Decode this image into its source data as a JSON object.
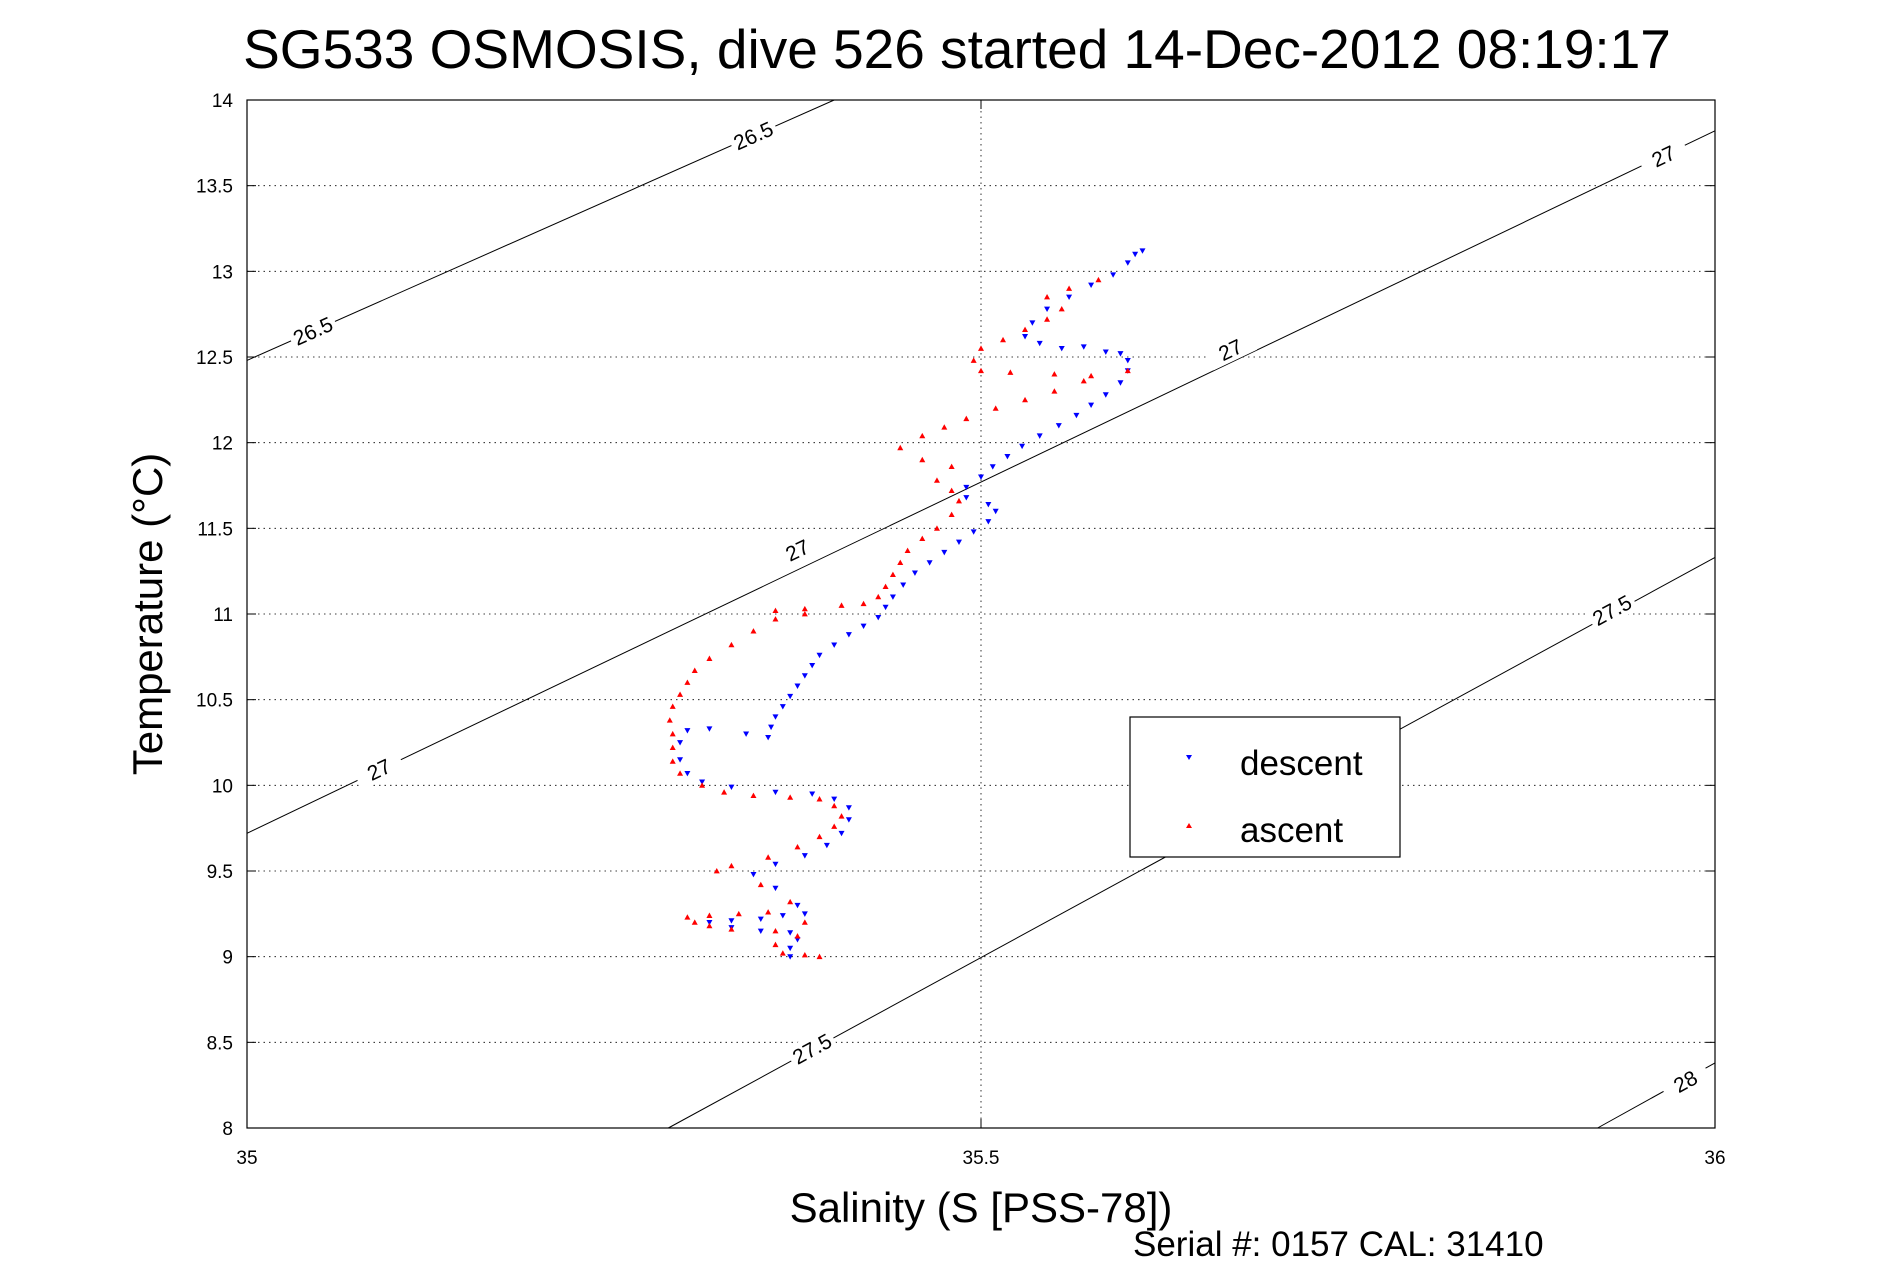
{
  "chart_data": {
    "type": "scatter",
    "title": "SG533 OSMOSIS, dive 526 started 14-Dec-2012 08:19:17",
    "xlabel": "Salinity (S [PSS-78])",
    "ylabel": "Temperature (°C)",
    "xlim": [
      35,
      36
    ],
    "ylim": [
      8,
      14
    ],
    "xticks": [
      {
        "value": 35,
        "label": "35"
      },
      {
        "value": 35.5,
        "label": "35.5"
      },
      {
        "value": 36,
        "label": "36"
      }
    ],
    "yticks": [
      {
        "value": 8,
        "label": "8"
      },
      {
        "value": 8.5,
        "label": "8.5"
      },
      {
        "value": 9,
        "label": "9"
      },
      {
        "value": 9.5,
        "label": "9.5"
      },
      {
        "value": 10,
        "label": "10"
      },
      {
        "value": 10.5,
        "label": "10.5"
      },
      {
        "value": 11,
        "label": "11"
      },
      {
        "value": 11.5,
        "label": "11.5"
      },
      {
        "value": 12,
        "label": "12"
      },
      {
        "value": 12.5,
        "label": "12.5"
      },
      {
        "value": 13,
        "label": "13"
      },
      {
        "value": 13.5,
        "label": "13.5"
      },
      {
        "value": 14,
        "label": "14"
      }
    ],
    "grid": true,
    "legend_position": "right",
    "density_contours": [
      {
        "label": "26.5",
        "points": [
          [
            35,
            12.48
          ],
          [
            35.4,
            14.0
          ]
        ],
        "labels_at": [
          [
            35.045,
            12.65
          ],
          [
            35.345,
            13.79
          ]
        ]
      },
      {
        "label": "27",
        "points": [
          [
            35,
            9.72
          ],
          [
            36,
            13.82
          ]
        ],
        "labels_at": [
          [
            35.09,
            10.09
          ],
          [
            35.375,
            11.37
          ],
          [
            35.67,
            12.54
          ],
          [
            35.965,
            13.67
          ]
        ]
      },
      {
        "label": "27.5",
        "points": [
          [
            35.287,
            8.0
          ],
          [
            36,
            11.33
          ]
        ],
        "labels_at": [
          [
            35.385,
            8.46
          ],
          [
            35.93,
            11.02
          ]
        ]
      },
      {
        "label": "28",
        "points": [
          [
            35.92,
            8.0
          ],
          [
            36,
            8.38
          ]
        ],
        "labels_at": [
          [
            35.98,
            8.27
          ]
        ]
      }
    ],
    "series": [
      {
        "name": "descent",
        "color": "#0000ff",
        "marker": "triangle-down",
        "points": [
          [
            35.61,
            13.12
          ],
          [
            35.605,
            13.1
          ],
          [
            35.6,
            13.05
          ],
          [
            35.59,
            12.98
          ],
          [
            35.575,
            12.92
          ],
          [
            35.56,
            12.85
          ],
          [
            35.545,
            12.78
          ],
          [
            35.535,
            12.7
          ],
          [
            35.53,
            12.62
          ],
          [
            35.54,
            12.58
          ],
          [
            35.555,
            12.55
          ],
          [
            35.57,
            12.56
          ],
          [
            35.585,
            12.53
          ],
          [
            35.595,
            12.52
          ],
          [
            35.6,
            12.48
          ],
          [
            35.6,
            12.42
          ],
          [
            35.595,
            12.35
          ],
          [
            35.585,
            12.28
          ],
          [
            35.575,
            12.22
          ],
          [
            35.565,
            12.16
          ],
          [
            35.553,
            12.1
          ],
          [
            35.54,
            12.04
          ],
          [
            35.528,
            11.98
          ],
          [
            35.518,
            11.92
          ],
          [
            35.508,
            11.86
          ],
          [
            35.5,
            11.8
          ],
          [
            35.49,
            11.74
          ],
          [
            35.49,
            11.68
          ],
          [
            35.505,
            11.64
          ],
          [
            35.51,
            11.6
          ],
          [
            35.505,
            11.54
          ],
          [
            35.495,
            11.48
          ],
          [
            35.485,
            11.42
          ],
          [
            35.475,
            11.36
          ],
          [
            35.465,
            11.3
          ],
          [
            35.455,
            11.24
          ],
          [
            35.447,
            11.17
          ],
          [
            35.44,
            11.1
          ],
          [
            35.435,
            11.04
          ],
          [
            35.43,
            10.98
          ],
          [
            35.42,
            10.93
          ],
          [
            35.41,
            10.88
          ],
          [
            35.4,
            10.82
          ],
          [
            35.39,
            10.76
          ],
          [
            35.385,
            10.7
          ],
          [
            35.38,
            10.64
          ],
          [
            35.375,
            10.58
          ],
          [
            35.37,
            10.52
          ],
          [
            35.365,
            10.46
          ],
          [
            35.36,
            10.4
          ],
          [
            35.357,
            10.34
          ],
          [
            35.355,
            10.28
          ],
          [
            35.34,
            10.3
          ],
          [
            35.315,
            10.33
          ],
          [
            35.3,
            10.32
          ],
          [
            35.295,
            10.25
          ],
          [
            35.295,
            10.15
          ],
          [
            35.3,
            10.07
          ],
          [
            35.31,
            10.02
          ],
          [
            35.33,
            9.99
          ],
          [
            35.36,
            9.96
          ],
          [
            35.385,
            9.95
          ],
          [
            35.4,
            9.92
          ],
          [
            35.41,
            9.87
          ],
          [
            35.41,
            9.8
          ],
          [
            35.405,
            9.72
          ],
          [
            35.395,
            9.65
          ],
          [
            35.38,
            9.59
          ],
          [
            35.36,
            9.54
          ],
          [
            35.345,
            9.48
          ],
          [
            35.36,
            9.4
          ],
          [
            35.375,
            9.3
          ],
          [
            35.38,
            9.25
          ],
          [
            35.365,
            9.24
          ],
          [
            35.35,
            9.22
          ],
          [
            35.33,
            9.21
          ],
          [
            35.315,
            9.2
          ],
          [
            35.33,
            9.17
          ],
          [
            35.35,
            9.15
          ],
          [
            35.37,
            9.14
          ],
          [
            35.375,
            9.1
          ],
          [
            35.37,
            9.05
          ],
          [
            35.37,
            9.0
          ]
        ]
      },
      {
        "name": "ascent",
        "color": "#ff0000",
        "marker": "triangle-up",
        "points": [
          [
            35.58,
            12.95
          ],
          [
            35.56,
            12.9
          ],
          [
            35.545,
            12.85
          ],
          [
            35.555,
            12.78
          ],
          [
            35.545,
            12.72
          ],
          [
            35.53,
            12.66
          ],
          [
            35.515,
            12.6
          ],
          [
            35.5,
            12.55
          ],
          [
            35.495,
            12.48
          ],
          [
            35.5,
            12.42
          ],
          [
            35.52,
            12.41
          ],
          [
            35.55,
            12.4
          ],
          [
            35.575,
            12.39
          ],
          [
            35.6,
            12.42
          ],
          [
            35.57,
            12.36
          ],
          [
            35.55,
            12.3
          ],
          [
            35.53,
            12.25
          ],
          [
            35.51,
            12.2
          ],
          [
            35.49,
            12.14
          ],
          [
            35.475,
            12.09
          ],
          [
            35.46,
            12.04
          ],
          [
            35.445,
            11.97
          ],
          [
            35.46,
            11.9
          ],
          [
            35.48,
            11.86
          ],
          [
            35.47,
            11.78
          ],
          [
            35.48,
            11.72
          ],
          [
            35.485,
            11.66
          ],
          [
            35.48,
            11.58
          ],
          [
            35.47,
            11.5
          ],
          [
            35.46,
            11.44
          ],
          [
            35.45,
            11.37
          ],
          [
            35.445,
            11.3
          ],
          [
            35.44,
            11.23
          ],
          [
            35.435,
            11.16
          ],
          [
            35.43,
            11.1
          ],
          [
            35.42,
            11.06
          ],
          [
            35.405,
            11.05
          ],
          [
            35.38,
            11.03
          ],
          [
            35.36,
            11.02
          ],
          [
            35.38,
            11.0
          ],
          [
            35.36,
            10.97
          ],
          [
            35.345,
            10.9
          ],
          [
            35.33,
            10.82
          ],
          [
            35.315,
            10.74
          ],
          [
            35.305,
            10.67
          ],
          [
            35.3,
            10.6
          ],
          [
            35.295,
            10.53
          ],
          [
            35.29,
            10.46
          ],
          [
            35.288,
            10.38
          ],
          [
            35.29,
            10.3
          ],
          [
            35.29,
            10.22
          ],
          [
            35.29,
            10.14
          ],
          [
            35.295,
            10.07
          ],
          [
            35.31,
            10.0
          ],
          [
            35.325,
            9.96
          ],
          [
            35.345,
            9.94
          ],
          [
            35.37,
            9.93
          ],
          [
            35.39,
            9.92
          ],
          [
            35.4,
            9.88
          ],
          [
            35.405,
            9.82
          ],
          [
            35.4,
            9.76
          ],
          [
            35.39,
            9.7
          ],
          [
            35.375,
            9.64
          ],
          [
            35.355,
            9.58
          ],
          [
            35.33,
            9.53
          ],
          [
            35.32,
            9.5
          ],
          [
            35.35,
            9.42
          ],
          [
            35.37,
            9.32
          ],
          [
            35.355,
            9.26
          ],
          [
            35.335,
            9.25
          ],
          [
            35.315,
            9.24
          ],
          [
            35.3,
            9.23
          ],
          [
            35.305,
            9.2
          ],
          [
            35.315,
            9.18
          ],
          [
            35.33,
            9.16
          ],
          [
            35.36,
            9.15
          ],
          [
            35.38,
            9.2
          ],
          [
            35.375,
            9.12
          ],
          [
            35.36,
            9.07
          ],
          [
            35.365,
            9.02
          ],
          [
            35.38,
            9.01
          ],
          [
            35.39,
            9.0
          ]
        ]
      }
    ],
    "legend": [
      {
        "label": "descent",
        "color": "#0000ff",
        "marker": "triangle-down"
      },
      {
        "label": "ascent",
        "color": "#ff0000",
        "marker": "triangle-up"
      }
    ],
    "footer": "Serial #: 0157  CAL: 31410"
  }
}
